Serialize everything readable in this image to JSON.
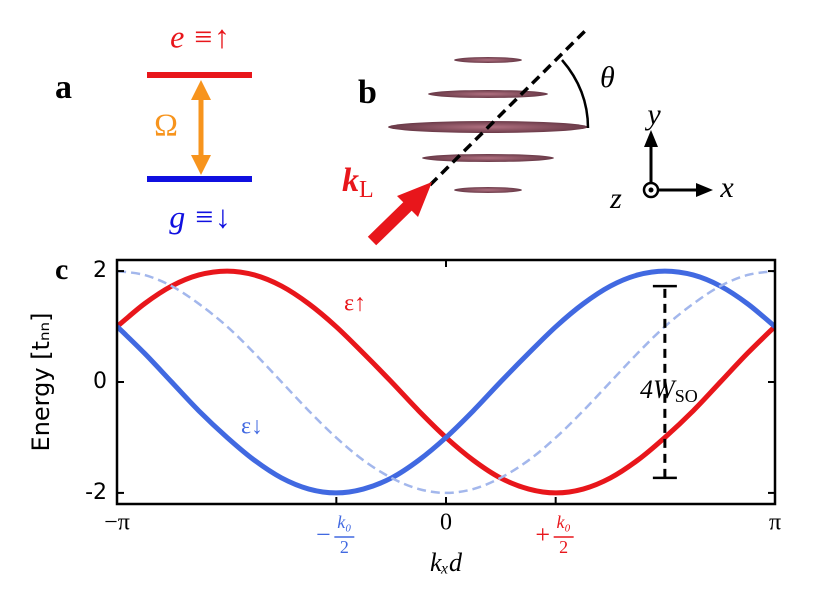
{
  "panels": {
    "a": {
      "label": "a",
      "upper": "e ≡↑",
      "coupling": "Ω",
      "lower": "g ≡↓"
    },
    "b": {
      "label": "b",
      "angle": "θ",
      "beam": "k",
      "beam_sub": "L",
      "axis_y": "y",
      "axis_x": "x",
      "axis_z": "z"
    }
  },
  "chart_data": {
    "type": "line",
    "panel_label": "c",
    "x_label": "kₓd",
    "y_label": "Energy [tₙₙ]",
    "x": [
      -3.14,
      -2.88,
      -2.62,
      -2.36,
      -2.09,
      -1.83,
      -1.57,
      -1.31,
      -1.05,
      -0.79,
      -0.52,
      -0.26,
      0,
      0.26,
      0.52,
      0.79,
      1.05,
      1.31,
      1.57,
      1.83,
      2.09,
      2.36,
      2.62,
      2.88,
      3.14
    ],
    "series": [
      {
        "name": "ε↑",
        "color": "#e8161b",
        "style": "solid",
        "values": [
          1,
          1.41,
          1.73,
          1.93,
          2,
          1.93,
          1.73,
          1.41,
          1,
          0.52,
          0,
          -0.52,
          -1,
          -1.41,
          -1.73,
          -1.93,
          -2,
          -1.93,
          -1.73,
          -1.41,
          -1,
          -0.52,
          0,
          0.52,
          1
        ]
      },
      {
        "name": "ε↓",
        "color": "#4169e1",
        "style": "solid",
        "values": [
          1,
          0.52,
          0,
          -0.52,
          -1,
          -1.41,
          -1.73,
          -1.93,
          -2,
          -1.93,
          -1.73,
          -1.41,
          -1,
          -0.52,
          0,
          0.52,
          1,
          1.41,
          1.73,
          1.93,
          2,
          1.93,
          1.73,
          1.41,
          1
        ]
      },
      {
        "color": "#a3b7ec",
        "style": "dashed",
        "values": [
          2,
          1.93,
          1.73,
          1.41,
          1,
          0.52,
          0,
          -0.52,
          -1,
          -1.41,
          -1.73,
          -1.93,
          -2,
          -1.93,
          -1.73,
          -1.41,
          -1,
          -0.52,
          0,
          0.52,
          1,
          1.41,
          1.73,
          1.93,
          2
        ]
      }
    ],
    "xlim": [
      -3.1416,
      3.1416
    ],
    "ylim": [
      -2.2,
      2.2
    ],
    "xticks": [
      {
        "value": -3.1416,
        "label": "−π"
      },
      0,
      {
        "value": 3.1416,
        "label": "π"
      }
    ],
    "k0_ticks": [
      {
        "value": -1.0472,
        "sign": "−",
        "num": "k₀",
        "den": "2",
        "color": "#4169e1"
      },
      {
        "value": 1.0472,
        "sign": "+",
        "num": "k₀",
        "den": "2",
        "color": "#e8161b"
      }
    ],
    "yticks": [
      -2,
      0,
      2
    ],
    "gap": {
      "x": 2.09,
      "ymin": -1.73,
      "ymax": 1.73,
      "label": "4W",
      "label_sub": "SO"
    }
  }
}
